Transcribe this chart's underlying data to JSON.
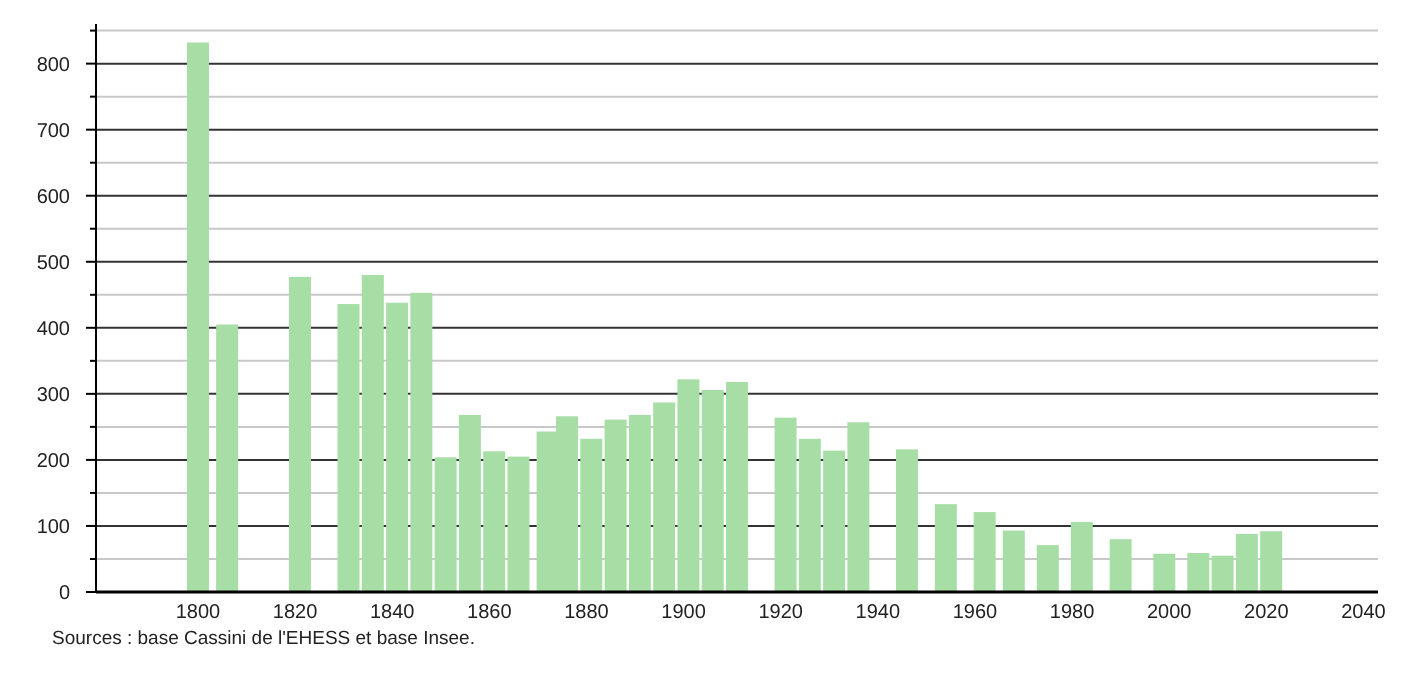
{
  "chart_data": {
    "type": "bar",
    "color": "#a6dea6",
    "x": [
      1800,
      1806,
      1821,
      1831,
      1836,
      1841,
      1846,
      1851,
      1856,
      1861,
      1866,
      1872,
      1876,
      1881,
      1886,
      1891,
      1896,
      1901,
      1906,
      1911,
      1921,
      1926,
      1931,
      1936,
      1946,
      1954,
      1962,
      1968,
      1975,
      1982,
      1990,
      1999,
      2006,
      2011,
      2016,
      2021
    ],
    "values": [
      832,
      405,
      477,
      436,
      480,
      438,
      453,
      204,
      268,
      213,
      205,
      243,
      266,
      232,
      261,
      268,
      287,
      322,
      306,
      318,
      264,
      232,
      214,
      257,
      216,
      133,
      121,
      93,
      71,
      106,
      80,
      58,
      59,
      55,
      88,
      92
    ],
    "xlim": [
      1779,
      2043
    ],
    "xticks": [
      1800,
      1820,
      1840,
      1860,
      1880,
      1900,
      1920,
      1940,
      1960,
      1980,
      2000,
      2020,
      2040
    ],
    "ylim": [
      0,
      860
    ],
    "yticks": [
      0,
      {
        "value": 50,
        "label": null
      },
      100,
      {
        "value": 150,
        "label": null
      },
      200,
      {
        "value": 250,
        "label": null
      },
      300,
      {
        "value": 350,
        "label": null
      },
      400,
      {
        "value": 450,
        "label": null
      },
      500,
      {
        "value": 550,
        "label": null
      },
      600,
      {
        "value": 650,
        "label": null
      },
      700,
      {
        "value": 750,
        "label": null
      },
      800,
      {
        "value": 850,
        "label": null
      }
    ],
    "grid": "y",
    "annotations": [
      "Sources : base Cassini de l'EHESS et base Insee."
    ]
  }
}
